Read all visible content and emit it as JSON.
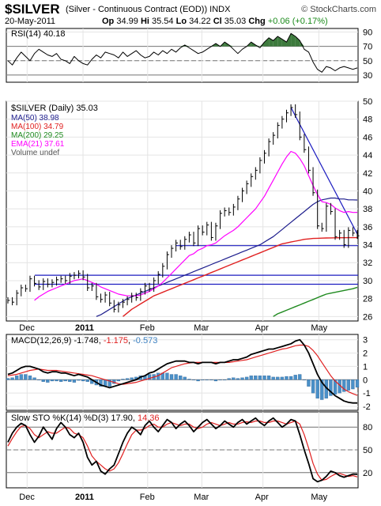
{
  "header": {
    "symbol": "$SILVER",
    "description": "(Silver - Continuous Contract (EOD)) INDX",
    "brand": "© StockCharts.com",
    "date": "20-May-2011",
    "op_label": "Op",
    "op": "34.99",
    "hi_label": "Hi",
    "hi": "35.54",
    "lo_label": "Lo",
    "lo": "34.22",
    "cl_label": "Cl",
    "cl": "35.03",
    "chg_label": "Chg",
    "chg": "+0.06 (+0.17%)"
  },
  "rsi_legend": "RSI(14) 40.18",
  "price_legend": {
    "title": "$SILVER (Daily) 35.03",
    "ma50": "MA(50) 38.98",
    "ma100": "MA(100) 34.79",
    "ma200": "MA(200) 29.25",
    "ema21": "EMA(21) 37.61",
    "volume": "Volume undef"
  },
  "macd_legend": {
    "label": "MACD(12,26,9)",
    "v1": "-1.748",
    "v2": "-1.175",
    "v3": "-0.573"
  },
  "sto_legend": {
    "label": "Slow STO %K(14) %D(3)",
    "k": "17.90",
    "d": "14.36"
  },
  "colors": {
    "price": "#000000",
    "ma50": "#1c1c8c",
    "ma100": "#e02020",
    "ma200": "#1f8a1f",
    "ema21": "#ff00ff",
    "hline": "#1c1cc0",
    "macd_hist": "#4a90c8",
    "macd_signal": "#e02020",
    "rsi_fill": "#3d7a3d"
  },
  "chart_data": [
    {
      "type": "line",
      "panel": "RSI",
      "title": "RSI(14) 40.18",
      "ylim": [
        20,
        95
      ],
      "yticks": [
        30,
        50,
        70,
        90
      ],
      "reference_lines": [
        30,
        50,
        70
      ],
      "series": [
        {
          "name": "RSI(14)",
          "values": [
            50,
            44,
            54,
            62,
            56,
            50,
            60,
            66,
            62,
            58,
            56,
            60,
            52,
            50,
            46,
            56,
            50,
            46,
            44,
            52,
            58,
            54,
            62,
            60,
            58,
            54,
            62,
            56,
            60,
            64,
            58,
            54,
            56,
            62,
            58,
            64,
            60,
            66,
            62,
            68,
            72,
            68,
            64,
            60,
            62,
            66,
            70,
            74,
            70,
            76,
            72,
            66,
            60,
            66,
            70,
            76,
            72,
            68,
            76,
            82,
            78,
            84,
            80,
            76,
            88,
            84,
            78,
            66,
            62,
            48,
            38,
            34,
            42,
            40,
            36,
            40,
            42,
            40,
            38,
            40
          ]
        }
      ]
    },
    {
      "type": "line",
      "panel": "Price",
      "title": "$SILVER (Daily) 35.03",
      "ylim": [
        25.5,
        50
      ],
      "yticks": [
        26,
        28,
        30,
        32,
        34,
        36,
        38,
        40,
        42,
        44,
        46,
        48,
        50
      ],
      "xticks": [
        "Dec",
        "2011",
        "Feb",
        "Mar",
        "Apr",
        "May"
      ],
      "horizontal_lines": [
        30.6,
        29.6,
        33.9
      ],
      "series": [
        {
          "name": "$SILVER",
          "values": [
            27.8,
            27.6,
            28.6,
            29.2,
            29.1,
            30.2,
            29.7,
            29.3,
            29.9,
            29.6,
            29.8,
            30.1,
            30.2,
            30.0,
            30.5,
            30.6,
            30.8,
            30.4,
            29.2,
            29.4,
            28.2,
            27.9,
            28.4,
            27.5,
            26.8,
            27.3,
            27.6,
            27.9,
            28.3,
            28.1,
            28.8,
            29.4,
            29.1,
            30.0,
            30.7,
            31.6,
            32.9,
            33.6,
            34.2,
            33.8,
            34.6,
            35.1,
            34.2,
            35.8,
            35.4,
            36.2,
            34.8,
            36.1,
            37.5,
            37.8,
            37.6,
            38.2,
            39.1,
            40.0,
            40.8,
            41.6,
            42.3,
            43.4,
            44.2,
            45.5,
            46.2,
            47.3,
            48.0,
            48.7,
            49.3,
            48.5,
            46.0,
            44.6,
            42.3,
            39.8,
            36.1,
            35.8,
            38.3,
            37.7,
            34.9,
            35.3,
            34.0,
            35.6,
            35.3,
            35.0
          ]
        },
        {
          "name": "MA(50)",
          "values": [
            null,
            null,
            null,
            null,
            null,
            null,
            null,
            null,
            null,
            null,
            null,
            null,
            null,
            null,
            null,
            null,
            null,
            null,
            null,
            null,
            26.0,
            26.2,
            26.5,
            26.8,
            27.1,
            27.4,
            27.7,
            28.0,
            28.2,
            28.4,
            28.6,
            28.8,
            29.0,
            29.2,
            29.4,
            29.6,
            29.8,
            30.0,
            30.2,
            30.4,
            30.6,
            30.8,
            31.0,
            31.2,
            31.4,
            31.6,
            31.8,
            32.0,
            32.2,
            32.4,
            32.6,
            32.8,
            33.0,
            33.2,
            33.4,
            33.6,
            33.8,
            34.0,
            34.3,
            34.6,
            34.9,
            35.3,
            35.7,
            36.1,
            36.5,
            36.9,
            37.3,
            37.7,
            38.1,
            38.5,
            38.8,
            39.0,
            39.1,
            39.2,
            39.2,
            39.1,
            39.1,
            39.0,
            39.0,
            38.98
          ]
        },
        {
          "name": "MA(100)",
          "values": [
            null,
            null,
            null,
            null,
            null,
            null,
            null,
            null,
            null,
            null,
            null,
            null,
            null,
            null,
            null,
            null,
            null,
            null,
            null,
            null,
            null,
            null,
            null,
            null,
            null,
            null,
            26.0,
            26.4,
            26.8,
            27.1,
            27.4,
            27.7,
            28.0,
            28.3,
            28.5,
            28.7,
            28.9,
            29.1,
            29.3,
            29.5,
            29.7,
            29.9,
            30.1,
            30.3,
            30.5,
            30.7,
            30.9,
            31.1,
            31.3,
            31.5,
            31.7,
            31.9,
            32.1,
            32.3,
            32.5,
            32.7,
            32.9,
            33.1,
            33.3,
            33.5,
            33.7,
            33.9,
            34.1,
            34.2,
            34.3,
            34.4,
            34.5,
            34.6,
            34.65,
            34.7,
            34.72,
            34.74,
            34.75,
            34.76,
            34.77,
            34.78,
            34.78,
            34.79,
            34.79,
            34.79
          ]
        },
        {
          "name": "MA(200)",
          "values": [
            null,
            null,
            null,
            null,
            null,
            null,
            null,
            null,
            null,
            null,
            null,
            null,
            null,
            null,
            null,
            null,
            null,
            null,
            null,
            null,
            null,
            null,
            null,
            null,
            null,
            null,
            null,
            null,
            null,
            null,
            null,
            null,
            null,
            null,
            null,
            null,
            null,
            null,
            null,
            null,
            null,
            null,
            null,
            null,
            null,
            null,
            null,
            null,
            null,
            null,
            null,
            null,
            null,
            null,
            null,
            null,
            null,
            null,
            null,
            null,
            26.0,
            26.3,
            26.5,
            26.7,
            26.9,
            27.1,
            27.3,
            27.5,
            27.7,
            27.9,
            28.1,
            28.3,
            28.5,
            28.6,
            28.7,
            28.8,
            28.9,
            29.0,
            29.1,
            29.25
          ]
        },
        {
          "name": "EMA(21)",
          "values": [
            null,
            null,
            null,
            null,
            null,
            null,
            27.8,
            28.2,
            28.5,
            28.8,
            29.0,
            29.2,
            29.4,
            29.6,
            29.8,
            30.0,
            30.1,
            30.2,
            30.0,
            29.8,
            29.6,
            29.3,
            29.1,
            28.9,
            28.7,
            28.5,
            28.4,
            28.3,
            28.3,
            28.3,
            28.4,
            28.6,
            28.8,
            29.1,
            29.4,
            29.8,
            30.3,
            30.8,
            31.3,
            31.8,
            32.3,
            32.8,
            33.0,
            33.4,
            33.6,
            33.9,
            34.0,
            34.2,
            34.6,
            35.0,
            35.3,
            35.6,
            36.0,
            36.5,
            37.0,
            37.5,
            38.0,
            38.7,
            39.4,
            40.3,
            41.2,
            42.1,
            43.0,
            43.8,
            44.4,
            44.2,
            43.6,
            42.8,
            41.7,
            40.6,
            39.6,
            38.8,
            38.7,
            38.5,
            38.1,
            37.8,
            37.6,
            37.7,
            37.6,
            37.61
          ]
        }
      ]
    },
    {
      "type": "line",
      "panel": "MACD",
      "title": "MACD(12,26,9) -1.748, -1.175, -0.573",
      "ylim": [
        -2.3,
        3.4
      ],
      "yticks": [
        -2,
        -1,
        0,
        1,
        2,
        3
      ],
      "series": [
        {
          "name": "MACD",
          "values": [
            0.4,
            0.5,
            0.7,
            0.9,
            1.0,
            1.0,
            0.9,
            0.8,
            0.6,
            0.5,
            0.6,
            0.6,
            0.5,
            0.5,
            0.4,
            0.3,
            0.4,
            0.3,
            0.2,
            0.0,
            -0.2,
            -0.4,
            -0.5,
            -0.6,
            -0.5,
            -0.4,
            -0.3,
            -0.2,
            -0.1,
            0.0,
            0.2,
            0.3,
            0.5,
            0.6,
            0.8,
            1.0,
            1.2,
            1.3,
            1.4,
            1.4,
            1.4,
            1.3,
            1.3,
            1.2,
            1.3,
            1.3,
            1.3,
            1.2,
            1.3,
            1.3,
            1.4,
            1.5,
            1.5,
            1.6,
            1.7,
            1.9,
            2.0,
            2.1,
            2.2,
            2.3,
            2.3,
            2.4,
            2.5,
            2.6,
            2.7,
            2.9,
            3.0,
            2.6,
            2.0,
            1.2,
            0.4,
            -0.2,
            -0.6,
            -0.9,
            -1.2,
            -1.4,
            -1.6,
            -1.7,
            -1.75,
            -1.748
          ]
        },
        {
          "name": "Signal",
          "values": [
            0.3,
            0.35,
            0.4,
            0.5,
            0.6,
            0.7,
            0.75,
            0.8,
            0.75,
            0.7,
            0.7,
            0.7,
            0.65,
            0.6,
            0.55,
            0.5,
            0.45,
            0.4,
            0.35,
            0.3,
            0.2,
            0.1,
            0.0,
            -0.1,
            -0.2,
            -0.3,
            -0.35,
            -0.3,
            -0.25,
            -0.2,
            -0.1,
            0.0,
            0.1,
            0.2,
            0.3,
            0.5,
            0.7,
            0.9,
            1.0,
            1.1,
            1.2,
            1.25,
            1.3,
            1.3,
            1.3,
            1.3,
            1.3,
            1.3,
            1.3,
            1.3,
            1.3,
            1.35,
            1.4,
            1.45,
            1.5,
            1.6,
            1.7,
            1.8,
            1.9,
            2.0,
            2.1,
            2.2,
            2.3,
            2.35,
            2.45,
            2.55,
            2.6,
            2.6,
            2.5,
            2.2,
            1.8,
            1.3,
            0.8,
            0.3,
            -0.1,
            -0.4,
            -0.7,
            -0.9,
            -1.05,
            -1.175
          ]
        }
      ]
    },
    {
      "type": "line",
      "panel": "Slow Stochastic",
      "title": "Slow STO %K(14) %D(3) 17.90, 14.36",
      "ylim": [
        0,
        100
      ],
      "yticks": [
        20,
        50,
        80
      ],
      "xticks": [
        "Dec",
        "2011",
        "Feb",
        "Mar",
        "Apr",
        "May"
      ],
      "reference_lines": [
        20,
        50,
        80
      ],
      "series": [
        {
          "name": "%K",
          "values": [
            60,
            72,
            80,
            85,
            82,
            70,
            60,
            68,
            80,
            72,
            64,
            78,
            86,
            80,
            70,
            66,
            72,
            60,
            40,
            30,
            35,
            22,
            18,
            25,
            30,
            45,
            60,
            72,
            80,
            76,
            70,
            82,
            88,
            80,
            74,
            82,
            90,
            86,
            78,
            84,
            88,
            82,
            74,
            80,
            86,
            90,
            84,
            78,
            82,
            88,
            84,
            80,
            86,
            90,
            84,
            88,
            92,
            86,
            82,
            88,
            92,
            86,
            80,
            84,
            90,
            88,
            70,
            50,
            32,
            12,
            8,
            10,
            15,
            22,
            20,
            16,
            14,
            16,
            18,
            17.9
          ]
        },
        {
          "name": "%D",
          "values": [
            55,
            65,
            74,
            81,
            82,
            78,
            70,
            66,
            70,
            74,
            72,
            72,
            76,
            80,
            78,
            72,
            70,
            66,
            55,
            42,
            35,
            30,
            25,
            22,
            25,
            33,
            45,
            58,
            70,
            76,
            76,
            78,
            82,
            84,
            80,
            80,
            84,
            86,
            84,
            82,
            84,
            84,
            80,
            78,
            80,
            84,
            86,
            84,
            82,
            84,
            86,
            84,
            84,
            86,
            87,
            86,
            88,
            88,
            86,
            86,
            88,
            88,
            86,
            84,
            86,
            88,
            84,
            70,
            52,
            32,
            18,
            10,
            11,
            15,
            18,
            19,
            17,
            15,
            16,
            14.36
          ]
        }
      ]
    }
  ]
}
